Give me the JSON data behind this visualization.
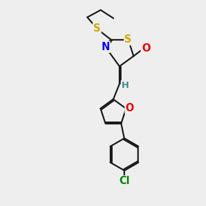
{
  "background_color": "#eeeeee",
  "bond_color": "#1a1a1a",
  "atom_colors": {
    "S": "#ccaa00",
    "N": "#0000ee",
    "O": "#ee0000",
    "Cl": "#008800",
    "H": "#448888",
    "C": "#1a1a1a"
  },
  "lw": 1.6,
  "fs": 9.5
}
